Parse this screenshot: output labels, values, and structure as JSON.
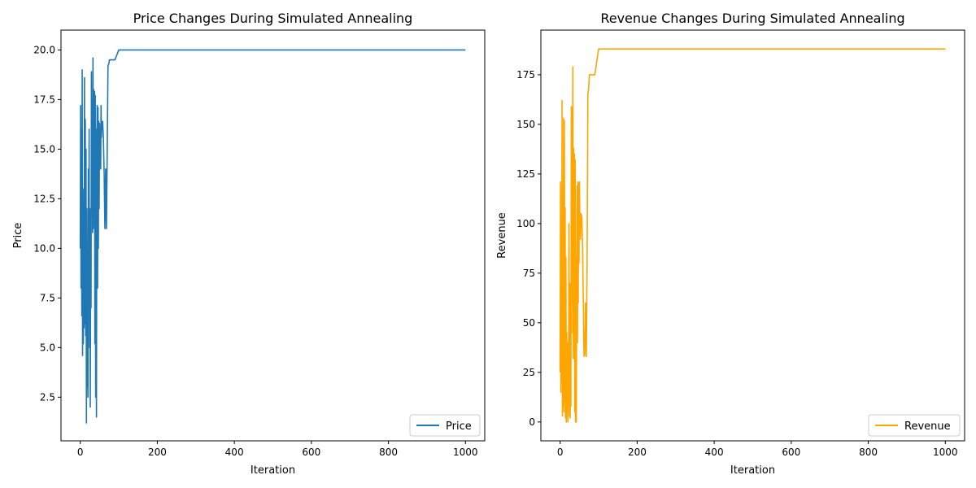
{
  "chart_data": [
    {
      "type": "line",
      "title": "Price Changes During Simulated Annealing",
      "xlabel": "Iteration",
      "ylabel": "Price",
      "xlim": [
        -50,
        1050
      ],
      "ylim": [
        0.3,
        21.0
      ],
      "xticks": [
        0,
        200,
        400,
        600,
        800,
        1000
      ],
      "xtick_labels": [
        "0",
        "200",
        "400",
        "600",
        "800",
        "1000"
      ],
      "yticks": [
        2.5,
        5.0,
        7.5,
        10.0,
        12.5,
        15.0,
        17.5,
        20.0
      ],
      "ytick_labels": [
        "2.5",
        "5.0",
        "7.5",
        "10.0",
        "12.5",
        "15.0",
        "17.5",
        "20.0"
      ],
      "legend_position": "bottom-right",
      "grid": false,
      "series": [
        {
          "name": "Price",
          "color": "#1f77b4",
          "x": [
            0,
            1,
            2,
            3,
            4,
            5,
            6,
            7,
            8,
            9,
            10,
            11,
            12,
            13,
            14,
            15,
            16,
            17,
            18,
            19,
            20,
            21,
            22,
            23,
            24,
            25,
            26,
            27,
            28,
            29,
            30,
            31,
            32,
            33,
            34,
            35,
            36,
            37,
            38,
            39,
            40,
            41,
            42,
            43,
            44,
            45,
            46,
            47,
            48,
            49,
            50,
            51,
            52,
            53,
            54,
            55,
            56,
            58,
            60,
            62,
            64,
            66,
            68,
            70,
            72,
            74,
            76,
            78,
            80,
            82,
            85,
            90,
            100,
            110,
            120,
            128,
            130,
            200,
            400,
            600,
            800,
            1000
          ],
          "y": [
            10.0,
            17.2,
            8.0,
            16.0,
            6.6,
            19.0,
            4.6,
            11.0,
            5.2,
            13.0,
            6.0,
            18.6,
            6.2,
            16.5,
            5.6,
            15.0,
            1.2,
            12.0,
            3.0,
            9.0,
            2.5,
            14.0,
            7.5,
            16.0,
            5.0,
            12.0,
            2.0,
            10.0,
            7.0,
            18.9,
            12.0,
            17.5,
            10.8,
            19.6,
            11.0,
            18.0,
            13.0,
            17.9,
            5.2,
            17.7,
            2.5,
            16.0,
            1.5,
            15.0,
            17.2,
            8.0,
            17.1,
            10.0,
            16.4,
            12.0,
            16.3,
            15.0,
            16.0,
            14.0,
            17.2,
            15.6,
            16.3,
            16.4,
            15.6,
            13.8,
            11.0,
            14.0,
            11.0,
            15.0,
            19.2,
            19.3,
            19.5,
            19.5,
            19.5,
            19.5,
            19.5,
            19.5,
            20.0,
            20.0,
            20.0,
            20.0,
            20.0,
            20.0,
            20.0,
            20.0,
            20.0,
            20.0
          ]
        }
      ]
    },
    {
      "type": "line",
      "title": "Revenue Changes During Simulated Annealing",
      "xlabel": "Iteration",
      "ylabel": "Revenue",
      "xlim": [
        -50,
        1050
      ],
      "ylim": [
        -9.5,
        197.5
      ],
      "xticks": [
        0,
        200,
        400,
        600,
        800,
        1000
      ],
      "xtick_labels": [
        "0",
        "200",
        "400",
        "600",
        "800",
        "1000"
      ],
      "yticks": [
        0,
        25,
        50,
        75,
        100,
        125,
        150,
        175
      ],
      "ytick_labels": [
        "0",
        "25",
        "50",
        "75",
        "100",
        "125",
        "150",
        "175"
      ],
      "legend_position": "bottom-right",
      "grid": false,
      "series": [
        {
          "name": "Revenue",
          "color": "#ffa500",
          "x": [
            0,
            1,
            2,
            3,
            4,
            5,
            6,
            7,
            8,
            9,
            10,
            11,
            12,
            13,
            14,
            15,
            16,
            17,
            18,
            19,
            20,
            21,
            22,
            23,
            24,
            25,
            26,
            27,
            28,
            29,
            30,
            31,
            32,
            33,
            34,
            35,
            36,
            37,
            38,
            39,
            40,
            41,
            42,
            43,
            44,
            45,
            46,
            47,
            48,
            49,
            50,
            51,
            52,
            53,
            54,
            55,
            56,
            58,
            60,
            62,
            64,
            66,
            68,
            70,
            72,
            74,
            76,
            78,
            80,
            82,
            85,
            90,
            100,
            110,
            120,
            128,
            130,
            200,
            400,
            600,
            800,
            1000
          ],
          "y": [
            25,
            121,
            15,
            100,
            20,
            162,
            3,
            110,
            8,
            153,
            5,
            152,
            10,
            108,
            2,
            83,
            0,
            45,
            5,
            40,
            0,
            35,
            10,
            100,
            3,
            70,
            2,
            40,
            8,
            159,
            45,
            158,
            60,
            179,
            32,
            138,
            45,
            135,
            5,
            132,
            0,
            83,
            0,
            75,
            119,
            40,
            121,
            60,
            120,
            80,
            121,
            105,
            104,
            92,
            105,
            100,
            104,
            92,
            64,
            33,
            34,
            60,
            33,
            80,
            165,
            168,
            175,
            175,
            175,
            175,
            175,
            175,
            188,
            188,
            188,
            188,
            188,
            188,
            188,
            188,
            188,
            188
          ]
        }
      ]
    }
  ]
}
